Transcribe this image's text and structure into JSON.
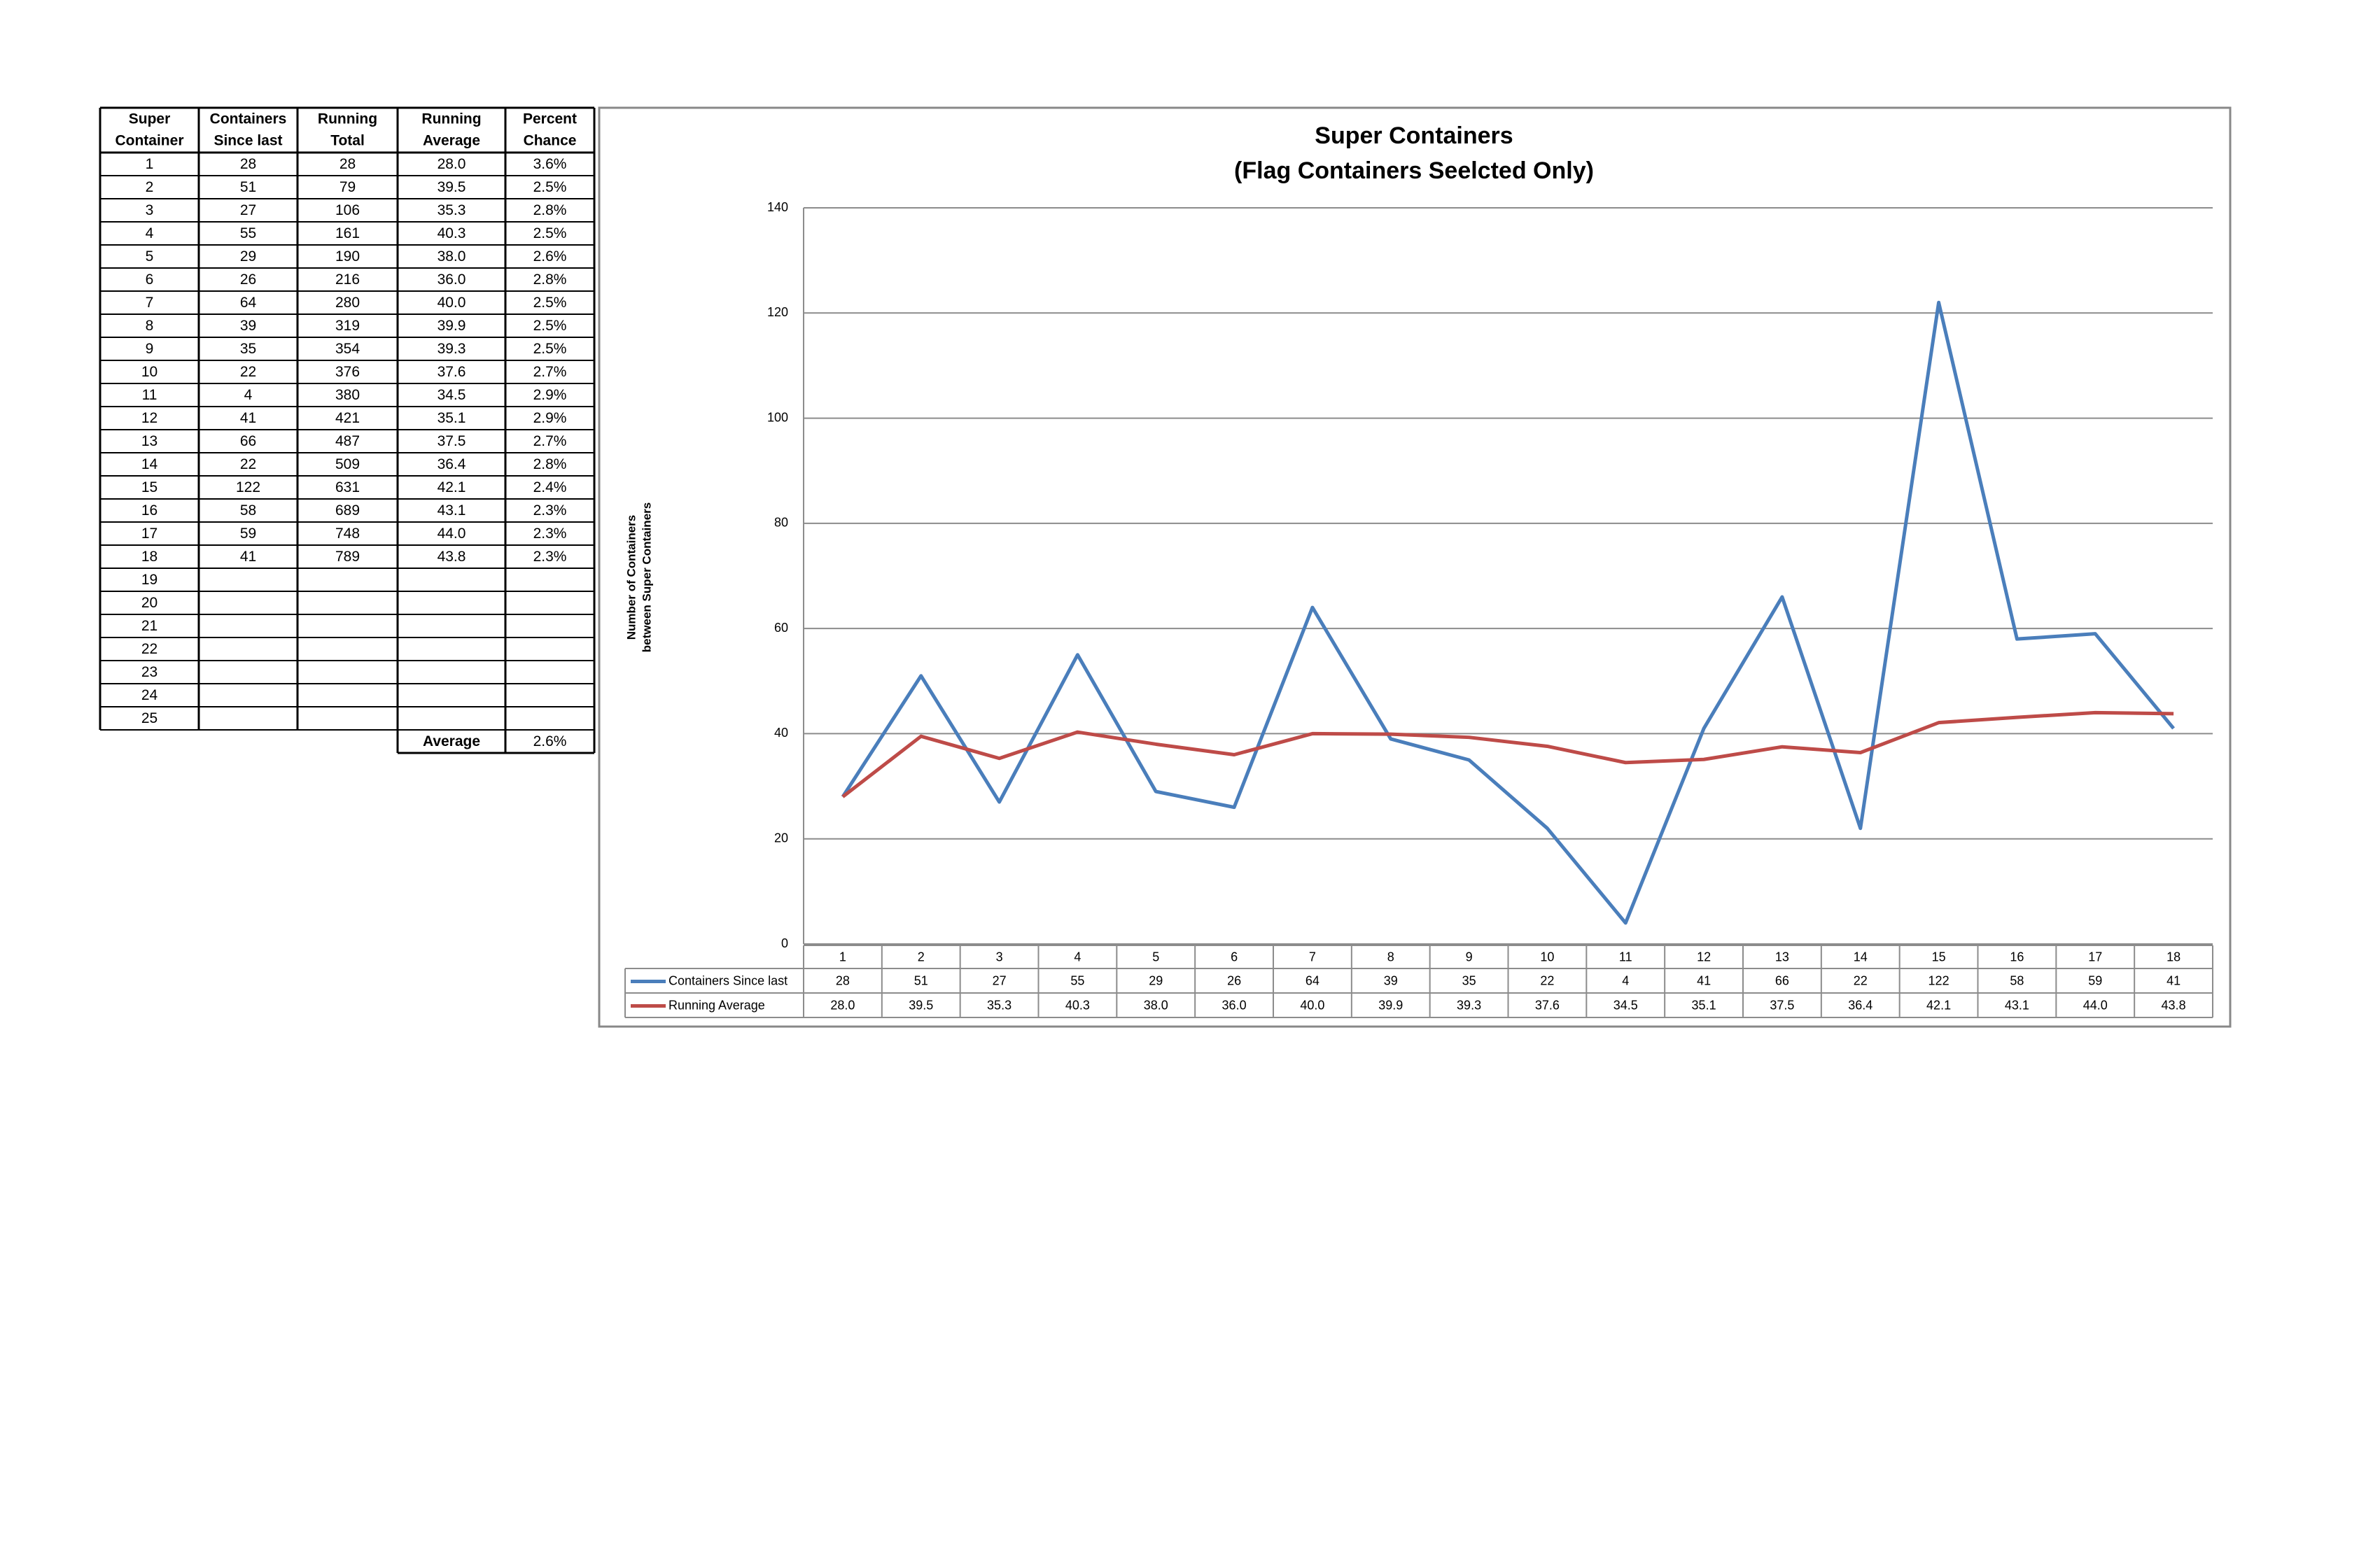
{
  "table": {
    "header": [
      [
        "Super",
        "Containers",
        "Running",
        "Running",
        "Percent"
      ],
      [
        "Container",
        "Since last",
        "Total",
        "Average",
        "Chance"
      ]
    ],
    "rows": [
      [
        "1",
        "28",
        "28",
        "28.0",
        "3.6%"
      ],
      [
        "2",
        "51",
        "79",
        "39.5",
        "2.5%"
      ],
      [
        "3",
        "27",
        "106",
        "35.3",
        "2.8%"
      ],
      [
        "4",
        "55",
        "161",
        "40.3",
        "2.5%"
      ],
      [
        "5",
        "29",
        "190",
        "38.0",
        "2.6%"
      ],
      [
        "6",
        "26",
        "216",
        "36.0",
        "2.8%"
      ],
      [
        "7",
        "64",
        "280",
        "40.0",
        "2.5%"
      ],
      [
        "8",
        "39",
        "319",
        "39.9",
        "2.5%"
      ],
      [
        "9",
        "35",
        "354",
        "39.3",
        "2.5%"
      ],
      [
        "10",
        "22",
        "376",
        "37.6",
        "2.7%"
      ],
      [
        "11",
        "4",
        "380",
        "34.5",
        "2.9%"
      ],
      [
        "12",
        "41",
        "421",
        "35.1",
        "2.9%"
      ],
      [
        "13",
        "66",
        "487",
        "37.5",
        "2.7%"
      ],
      [
        "14",
        "22",
        "509",
        "36.4",
        "2.8%"
      ],
      [
        "15",
        "122",
        "631",
        "42.1",
        "2.4%"
      ],
      [
        "16",
        "58",
        "689",
        "43.1",
        "2.3%"
      ],
      [
        "17",
        "59",
        "748",
        "44.0",
        "2.3%"
      ],
      [
        "18",
        "41",
        "789",
        "43.8",
        "2.3%"
      ],
      [
        "19"
      ],
      [
        "20"
      ],
      [
        "21"
      ],
      [
        "22"
      ],
      [
        "23"
      ],
      [
        "24"
      ],
      [
        "25"
      ]
    ],
    "footer": [
      "Average",
      "2.6%"
    ]
  },
  "chart_data": {
    "type": "line",
    "title": "Super Containers",
    "subtitle": "(Flag Containers Seelcted Only)",
    "y_label": [
      "Number of Containers",
      "between Super Containers"
    ],
    "categories": [
      "1",
      "2",
      "3",
      "4",
      "5",
      "6",
      "7",
      "8",
      "9",
      "10",
      "11",
      "12",
      "13",
      "14",
      "15",
      "16",
      "17",
      "18"
    ],
    "series": [
      {
        "name": "Containers Since last",
        "color": "#4a7ebb",
        "values": [
          28,
          51,
          27,
          55,
          29,
          26,
          64,
          39,
          35,
          22,
          4,
          41,
          66,
          22,
          122,
          58,
          59,
          41
        ]
      },
      {
        "name": "Running Average",
        "color": "#be4b48",
        "values": [
          28,
          39.5,
          35.3,
          40.3,
          38,
          36,
          40,
          39.9,
          39.3,
          37.6,
          34.5,
          35.1,
          37.5,
          36.4,
          42.1,
          43.1,
          44,
          43.8
        ],
        "value_labels": [
          "28.0",
          "39.5",
          "35.3",
          "40.3",
          "38.0",
          "36.0",
          "40.0",
          "39.9",
          "39.3",
          "37.6",
          "34.5",
          "35.1",
          "37.5",
          "36.4",
          "42.1",
          "43.1",
          "44.0",
          "43.8"
        ]
      }
    ],
    "ylim": [
      0,
      140
    ],
    "yticks": [
      0,
      20,
      40,
      60,
      80,
      100,
      120,
      140
    ],
    "grid": true
  }
}
